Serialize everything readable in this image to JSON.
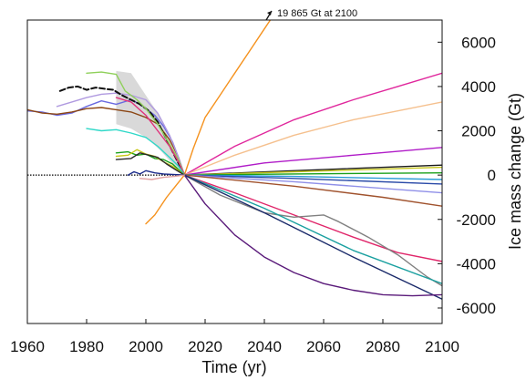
{
  "chart_data": {
    "type": "line",
    "title": "",
    "xlabel": "Time (yr)",
    "ylabel": "Ice mass change (Gt)",
    "xlim": [
      1960,
      2100
    ],
    "ylim": [
      -6700,
      7000
    ],
    "x_ticks": [
      1960,
      1980,
      2000,
      2020,
      2040,
      2060,
      2080,
      2100
    ],
    "y_ticks": [
      6000,
      4000,
      2000,
      0,
      -2000,
      -4000,
      -6000
    ],
    "y_axis_side": "right",
    "reference_line": {
      "y": 0,
      "style": "dotted",
      "color": "#000000"
    },
    "annotation": {
      "text": "19 865 Gt at 2100",
      "x": 2044,
      "y": 6950
    },
    "shaded_band": {
      "color": "#cfcfcf",
      "x": [
        1990,
        1995,
        2000,
        2005,
        2009,
        2013
      ],
      "upper": [
        4700,
        4600,
        3600,
        2600,
        1200,
        0
      ],
      "lower": [
        2300,
        2100,
        1700,
        1100,
        500,
        0
      ]
    },
    "series": [
      {
        "color": "#f5921e",
        "points": [
          [
            2000,
            -2200
          ],
          [
            2003,
            -1800
          ],
          [
            2007,
            -1000
          ],
          [
            2010,
            -500
          ],
          [
            2013,
            0
          ],
          [
            2016,
            1200
          ],
          [
            2020,
            2600
          ],
          [
            2025,
            3600
          ],
          [
            2030,
            4600
          ],
          [
            2035,
            5600
          ],
          [
            2040,
            6600
          ],
          [
            2042,
            7000
          ]
        ]
      },
      {
        "color": "#e0269c",
        "points": [
          [
            2013,
            0
          ],
          [
            2030,
            1300
          ],
          [
            2050,
            2500
          ],
          [
            2070,
            3400
          ],
          [
            2085,
            4000
          ],
          [
            2100,
            4600
          ]
        ]
      },
      {
        "color": "#f5c08e",
        "points": [
          [
            2013,
            0
          ],
          [
            2030,
            900
          ],
          [
            2050,
            1800
          ],
          [
            2070,
            2500
          ],
          [
            2085,
            2900
          ],
          [
            2100,
            3300
          ]
        ]
      },
      {
        "color": "#b01cc8",
        "points": [
          [
            2013,
            0
          ],
          [
            2040,
            550
          ],
          [
            2070,
            900
          ],
          [
            2100,
            1250
          ]
        ]
      },
      {
        "color": "#1a1a1a",
        "points": [
          [
            2013,
            0
          ],
          [
            2050,
            200
          ],
          [
            2100,
            450
          ]
        ]
      },
      {
        "color": "#c5c51a",
        "points": [
          [
            2013,
            0
          ],
          [
            2050,
            150
          ],
          [
            2100,
            350
          ]
        ]
      },
      {
        "color": "#1aa01a",
        "points": [
          [
            2013,
            0
          ],
          [
            2050,
            50
          ],
          [
            2100,
            100
          ]
        ]
      },
      {
        "color": "#2a9bd6",
        "points": [
          [
            2013,
            0
          ],
          [
            2050,
            -60
          ],
          [
            2100,
            -200
          ]
        ]
      },
      {
        "color": "#2a4aa8",
        "points": [
          [
            2013,
            0
          ],
          [
            2050,
            -150
          ],
          [
            2100,
            -400
          ]
        ]
      },
      {
        "color": "#8f8fe8",
        "points": [
          [
            2013,
            0
          ],
          [
            2050,
            -300
          ],
          [
            2100,
            -800
          ]
        ]
      },
      {
        "color": "#a0522d",
        "points": [
          [
            2013,
            0
          ],
          [
            2050,
            -500
          ],
          [
            2080,
            -1000
          ],
          [
            2100,
            -1400
          ]
        ]
      },
      {
        "color": "#e0266a",
        "points": [
          [
            2013,
            0
          ],
          [
            2030,
            -800
          ],
          [
            2050,
            -1800
          ],
          [
            2070,
            -2800
          ],
          [
            2085,
            -3500
          ],
          [
            2100,
            -3900
          ]
        ]
      },
      {
        "color": "#808080",
        "points": [
          [
            2013,
            0
          ],
          [
            2025,
            -900
          ],
          [
            2040,
            -1700
          ],
          [
            2050,
            -1900
          ],
          [
            2060,
            -1800
          ],
          [
            2065,
            -2100
          ],
          [
            2075,
            -2800
          ],
          [
            2085,
            -3600
          ],
          [
            2095,
            -4600
          ],
          [
            2100,
            -5000
          ]
        ]
      },
      {
        "color": "#1aa0a0",
        "points": [
          [
            2013,
            0
          ],
          [
            2040,
            -1500
          ],
          [
            2070,
            -3400
          ],
          [
            2100,
            -4900
          ]
        ]
      },
      {
        "color": "#1a2a6a",
        "points": [
          [
            2013,
            0
          ],
          [
            2040,
            -1700
          ],
          [
            2070,
            -3700
          ],
          [
            2100,
            -5600
          ]
        ]
      },
      {
        "color": "#5a1a7a",
        "points": [
          [
            2013,
            0
          ],
          [
            2020,
            -1300
          ],
          [
            2030,
            -2700
          ],
          [
            2040,
            -3700
          ],
          [
            2050,
            -4400
          ],
          [
            2060,
            -4900
          ],
          [
            2070,
            -5200
          ],
          [
            2080,
            -5400
          ],
          [
            2090,
            -5450
          ],
          [
            2100,
            -5400
          ]
        ]
      },
      {
        "color": "#6a6ae0",
        "points": [
          [
            1960,
            2900
          ],
          [
            1965,
            2850
          ],
          [
            1970,
            2700
          ],
          [
            1975,
            2800
          ],
          [
            1980,
            3100
          ],
          [
            1985,
            3350
          ],
          [
            1990,
            3200
          ],
          [
            1995,
            3400
          ],
          [
            1998,
            3200
          ],
          [
            2000,
            3000
          ],
          [
            2003,
            2700
          ],
          [
            2006,
            2200
          ],
          [
            2009,
            1500
          ],
          [
            2011,
            800
          ],
          [
            2013,
            0
          ]
        ]
      },
      {
        "color": "#8b4513",
        "points": [
          [
            1960,
            2950
          ],
          [
            1965,
            2800
          ],
          [
            1970,
            2750
          ],
          [
            1975,
            2850
          ],
          [
            1980,
            3000
          ],
          [
            1985,
            3050
          ],
          [
            1990,
            2950
          ],
          [
            1995,
            2850
          ],
          [
            2000,
            2600
          ],
          [
            2004,
            2300
          ],
          [
            2008,
            1600
          ],
          [
            2011,
            800
          ],
          [
            2013,
            0
          ]
        ]
      },
      {
        "color": "#b09ae0",
        "points": [
          [
            1970,
            3100
          ],
          [
            1975,
            3300
          ],
          [
            1980,
            3500
          ],
          [
            1985,
            3650
          ],
          [
            1990,
            3700
          ],
          [
            1995,
            3600
          ],
          [
            2000,
            3400
          ],
          [
            2004,
            2800
          ],
          [
            2008,
            1800
          ],
          [
            2011,
            800
          ],
          [
            2013,
            0
          ]
        ]
      },
      {
        "color": "#111111",
        "dashed": true,
        "points": [
          [
            1971,
            3800
          ],
          [
            1974,
            3950
          ],
          [
            1977,
            4000
          ],
          [
            1980,
            3850
          ],
          [
            1983,
            3950
          ],
          [
            1986,
            3900
          ],
          [
            1989,
            3850
          ],
          [
            1992,
            3600
          ],
          [
            1995,
            3400
          ],
          [
            1998,
            3200
          ],
          [
            2001,
            2900
          ],
          [
            2004,
            2400
          ],
          [
            2007,
            1600
          ],
          [
            2010,
            800
          ],
          [
            2013,
            0
          ]
        ]
      },
      {
        "color": "#8fd05a",
        "points": [
          [
            1980,
            4600
          ],
          [
            1985,
            4650
          ],
          [
            1990,
            4550
          ],
          [
            1993,
            3800
          ],
          [
            1997,
            3400
          ],
          [
            2000,
            3000
          ],
          [
            2004,
            2300
          ],
          [
            2008,
            1400
          ],
          [
            2011,
            700
          ],
          [
            2013,
            0
          ]
        ]
      },
      {
        "color": "#e0307a",
        "points": [
          [
            1990,
            3500
          ],
          [
            1995,
            3300
          ],
          [
            2000,
            2700
          ],
          [
            2004,
            2000
          ],
          [
            2008,
            1300
          ],
          [
            2011,
            600
          ],
          [
            2013,
            0
          ]
        ]
      },
      {
        "color": "#2fd8c8",
        "points": [
          [
            1980,
            2100
          ],
          [
            1985,
            2000
          ],
          [
            1990,
            2050
          ],
          [
            1995,
            1900
          ],
          [
            2000,
            1700
          ],
          [
            2004,
            1300
          ],
          [
            2008,
            800
          ],
          [
            2011,
            400
          ],
          [
            2013,
            0
          ]
        ]
      },
      {
        "color": "#1aa01a",
        "points": [
          [
            1990,
            1000
          ],
          [
            1994,
            1050
          ],
          [
            1997,
            900
          ],
          [
            2000,
            950
          ],
          [
            2003,
            750
          ],
          [
            2006,
            700
          ],
          [
            2009,
            500
          ],
          [
            2011,
            250
          ],
          [
            2013,
            0
          ]
        ]
      },
      {
        "color": "#c8c81a",
        "points": [
          [
            1990,
            850
          ],
          [
            1994,
            900
          ],
          [
            1997,
            1150
          ],
          [
            2000,
            950
          ],
          [
            2003,
            850
          ],
          [
            2006,
            600
          ],
          [
            2009,
            400
          ],
          [
            2011,
            200
          ],
          [
            2013,
            0
          ]
        ]
      },
      {
        "color": "#2a2a2a",
        "points": [
          [
            1990,
            700
          ],
          [
            1995,
            750
          ],
          [
            1998,
            1000
          ],
          [
            2001,
            900
          ],
          [
            2004,
            800
          ],
          [
            2007,
            500
          ],
          [
            2010,
            250
          ],
          [
            2013,
            0
          ]
        ]
      },
      {
        "color": "#1a2a8a",
        "points": [
          [
            1994,
            0
          ],
          [
            1996,
            150
          ],
          [
            1998,
            50
          ],
          [
            2000,
            200
          ],
          [
            2003,
            100
          ],
          [
            2006,
            50
          ],
          [
            2009,
            30
          ],
          [
            2013,
            0
          ]
        ]
      },
      {
        "color": "#e0a0a0",
        "points": [
          [
            1998,
            -150
          ],
          [
            2002,
            -200
          ],
          [
            2006,
            -100
          ],
          [
            2010,
            -50
          ],
          [
            2013,
            0
          ]
        ]
      }
    ]
  }
}
